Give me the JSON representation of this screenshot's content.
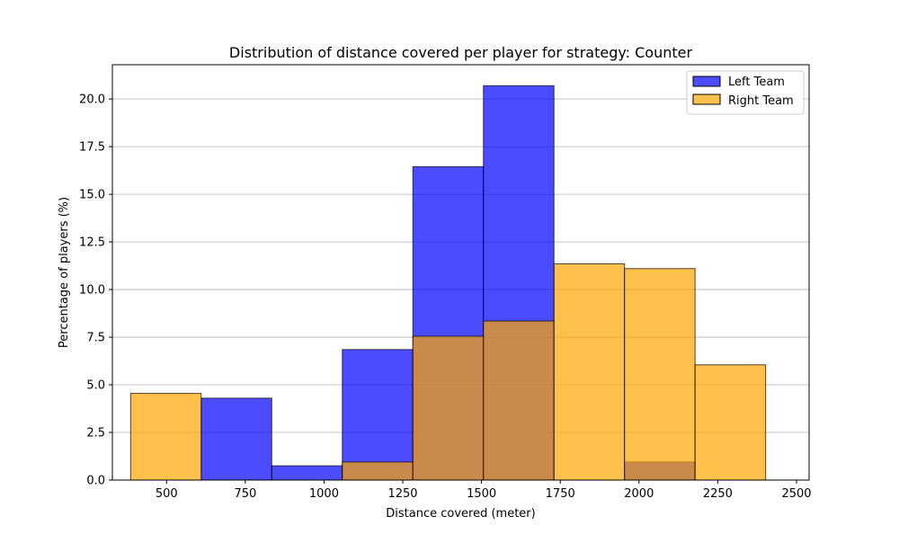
{
  "chart_data": {
    "type": "bar",
    "title": "Distribution of distance covered per player for strategy: Counter",
    "xlabel": "Distance covered (meter)",
    "ylabel": "Percentage of players (%)",
    "xlim": [
      328,
      2540
    ],
    "ylim": [
      0,
      21.8
    ],
    "xticks": [
      500,
      750,
      1000,
      1250,
      1500,
      1750,
      2000,
      2250,
      2500
    ],
    "xtick_labels": [
      "500",
      "750",
      "1000",
      "1250",
      "1500",
      "1750",
      "2000",
      "2250",
      "2500"
    ],
    "yticks": [
      0,
      2.5,
      5,
      7.5,
      10,
      12.5,
      15,
      17.5,
      20
    ],
    "ytick_labels": [
      "0.0",
      "2.5",
      "5.0",
      "7.5",
      "10.0",
      "12.5",
      "15.0",
      "17.5",
      "20.0"
    ],
    "grid": "y",
    "legend_position": "top-right",
    "bin_edges": [
      386,
      610,
      834,
      1058,
      1282,
      1506,
      1730,
      1954,
      2178,
      2402
    ],
    "series": [
      {
        "name": "Left Team",
        "color": "#0000ff",
        "opacity": 0.7,
        "values": [
          0,
          4.3,
          0.75,
          6.85,
          16.45,
          20.7,
          0,
          0.95,
          0
        ]
      },
      {
        "name": "Right Team",
        "color": "#ffa500",
        "opacity": 0.7,
        "values": [
          4.55,
          0,
          0,
          0.95,
          7.55,
          8.35,
          11.35,
          11.1,
          6.05
        ]
      }
    ]
  }
}
